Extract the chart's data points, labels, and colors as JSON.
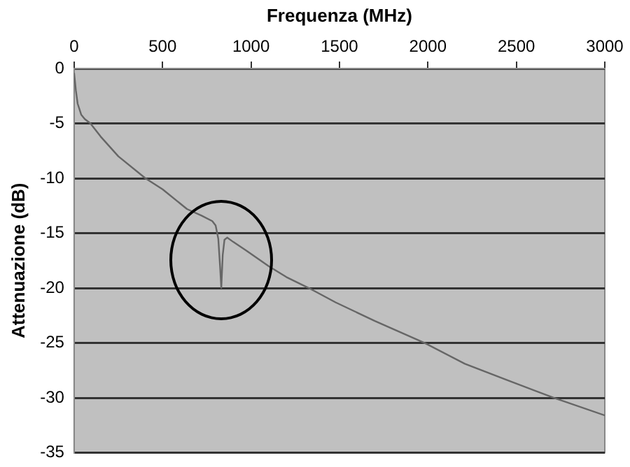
{
  "chart_data": {
    "type": "line",
    "xlabel": "Frequenza (MHz)",
    "ylabel": "Attenuazione (dB)",
    "x": [
      0,
      5,
      10,
      20,
      40,
      60,
      92,
      150,
      250,
      403,
      500,
      638,
      720,
      781,
      800,
      815,
      825,
      832,
      840,
      850,
      865,
      900,
      975,
      1100,
      1200,
      1327,
      1478,
      1700,
      1982,
      2209,
      2450,
      2713,
      3000
    ],
    "series": [
      {
        "color": "#666666",
        "values": [
          -0.4,
          -1.2,
          -2.0,
          -3.2,
          -4.2,
          -4.6,
          -5.0,
          -6.2,
          -8.0,
          -10.0,
          -11.0,
          -12.8,
          -13.4,
          -13.9,
          -14.3,
          -15.5,
          -18.0,
          -20.0,
          -17.0,
          -15.6,
          -15.4,
          -15.8,
          -16.6,
          -18.0,
          -19.0,
          -20.0,
          -21.3,
          -23.0,
          -25.0,
          -26.9,
          -28.4,
          -30.0,
          -31.6
        ]
      }
    ],
    "xlim": [
      0,
      3000
    ],
    "xticks": [
      0,
      500,
      1000,
      1500,
      2000,
      2500,
      3000
    ],
    "ylim": [
      -35,
      0
    ],
    "yticks": [
      -35,
      -30,
      -25,
      -20,
      -15,
      -10,
      -5,
      0
    ],
    "grid": "y",
    "legend": false,
    "marker": "none",
    "line_style": "solid"
  }
}
